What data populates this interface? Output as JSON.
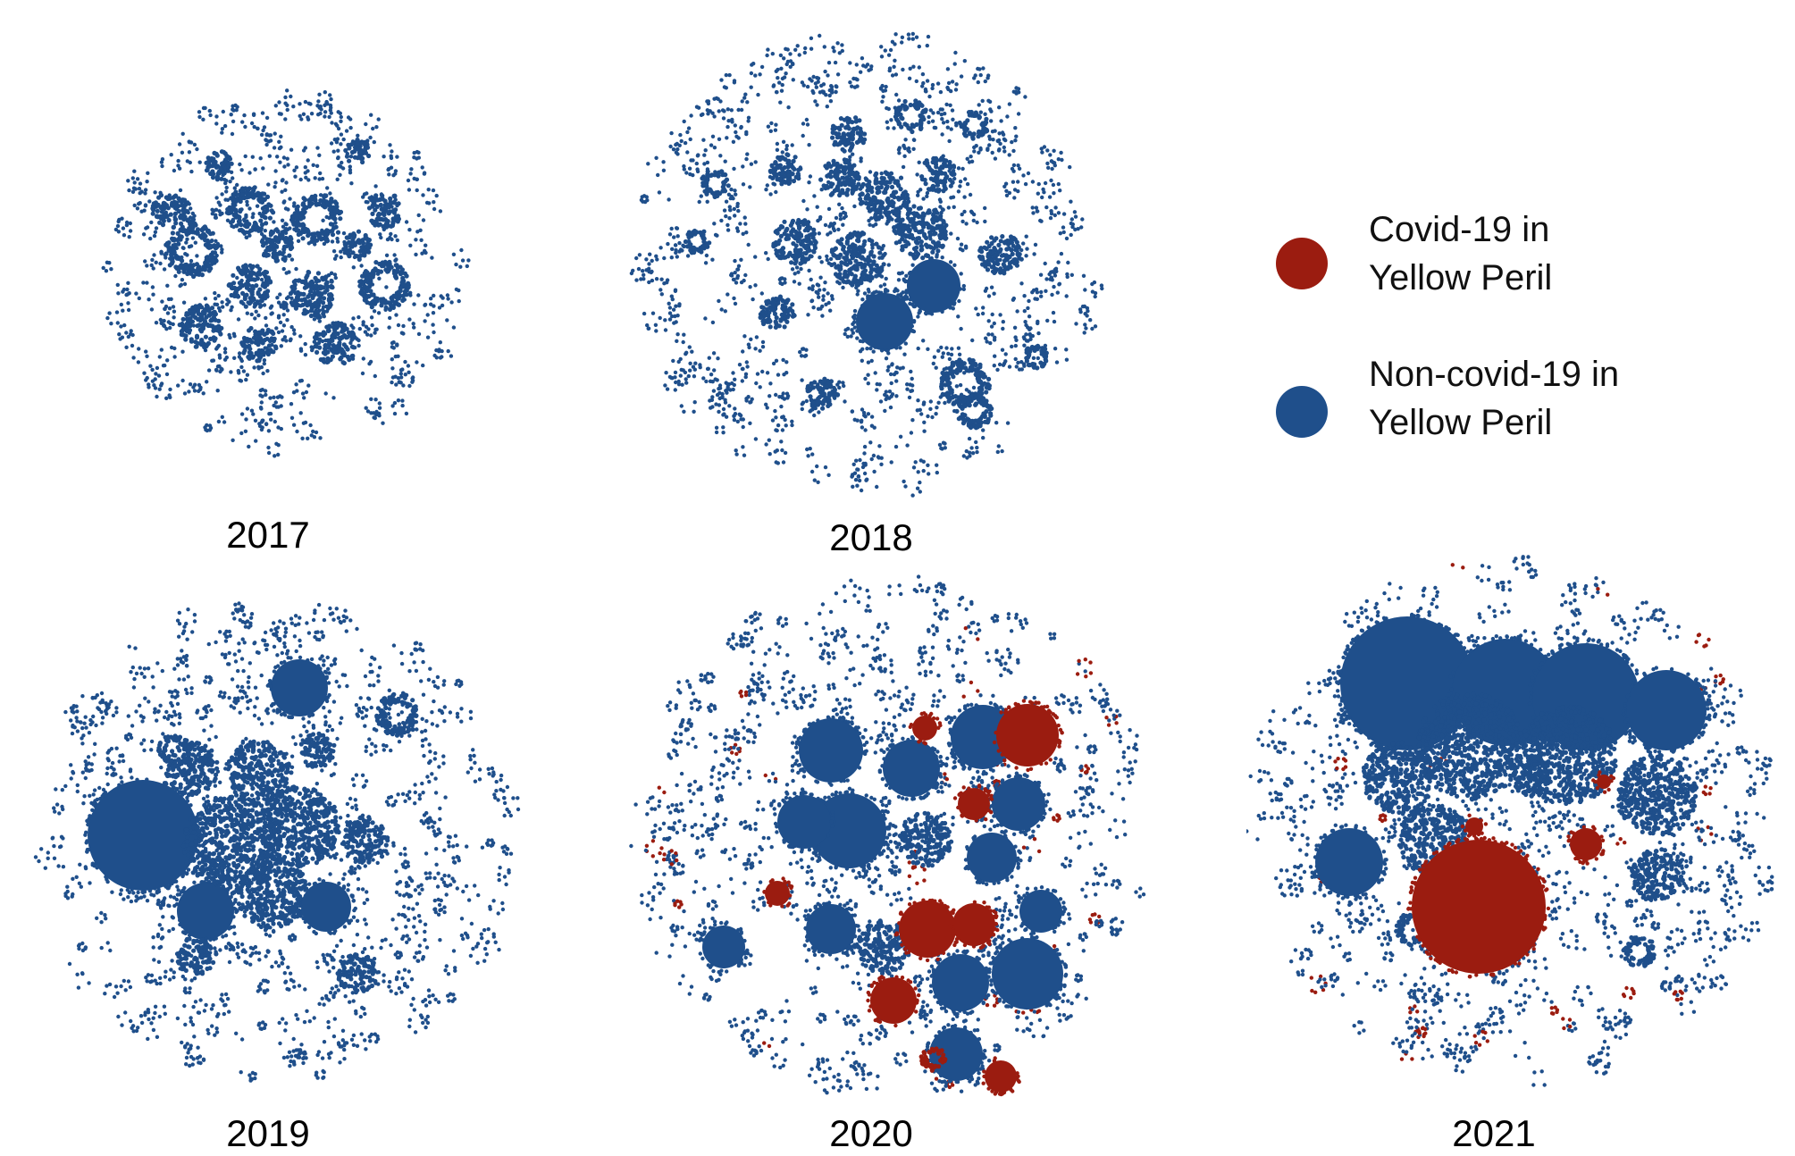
{
  "colors": {
    "covid": "#9b1c10",
    "noncovid": "#1f4f8b"
  },
  "legend": {
    "covid_label": "Covid-19 in\nYellow Peril",
    "noncovid_label": "Non-covid-19 in\nYellow Peril"
  },
  "panels": [
    {
      "id": "2017",
      "year": "2017",
      "covid_share": 0
    },
    {
      "id": "2018",
      "year": "2018",
      "covid_share": 0
    },
    {
      "id": "2019",
      "year": "2019",
      "covid_share": 0
    },
    {
      "id": "2020",
      "year": "2020",
      "covid_share": 0.25
    },
    {
      "id": "2021",
      "year": "2021",
      "covid_share": 0.2
    }
  ]
}
